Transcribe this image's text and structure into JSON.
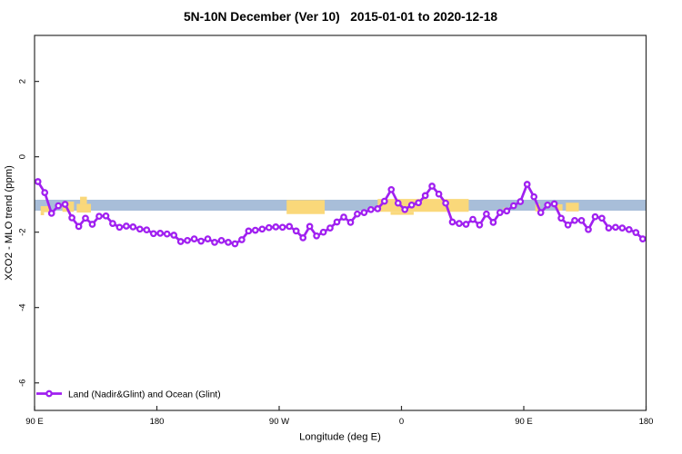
{
  "title": "5N-10N December (Ver 10)   2015-01-01 to 2020-12-18",
  "legend": {
    "label": "Land (Nadir&Glint) and Ocean (Glint)",
    "marker": "open-circle",
    "color": "#A020F0"
  },
  "colors": {
    "series_purple": "#A020F0",
    "marker_fill": "#ffffff",
    "ocean_band_blue": "#A8BED9",
    "land_patch_yellow": "#FAD87A",
    "axis_line": "#2e2e2e"
  },
  "chart_data": {
    "type": "line",
    "title": "5N-10N December (Ver 10)   2015-01-01 to 2020-12-18",
    "xlabel": "Longitude (deg E)",
    "ylabel": "XCO2 - MLO trend (ppm)",
    "xlim": [
      90,
      540
    ],
    "ylim": [
      -6.73,
      3.22
    ],
    "grid": false,
    "legend_position": "bottom-left",
    "x_ticks": [
      {
        "value": 90,
        "label": "90 E"
      },
      {
        "value": 180,
        "label": "180"
      },
      {
        "value": 270,
        "label": "90 W"
      },
      {
        "value": 360,
        "label": "0"
      },
      {
        "value": 450,
        "label": "90 E"
      },
      {
        "value": 540,
        "label": "180"
      }
    ],
    "y_ticks": [
      {
        "value": 2,
        "label": "2"
      },
      {
        "value": 0,
        "label": "0"
      },
      {
        "value": -2,
        "label": "-2"
      },
      {
        "value": -4,
        "label": "-4"
      },
      {
        "value": -6,
        "label": "-6"
      }
    ],
    "series": [
      {
        "name": "Land (Nadir&Glint) and Ocean (Glint)",
        "color": "#A020F0",
        "marker": "open-circle",
        "x_start": 92.5,
        "x_step": 5,
        "values": [
          -0.66,
          -0.95,
          -1.5,
          -1.3,
          -1.26,
          -1.62,
          -1.85,
          -1.63,
          -1.79,
          -1.58,
          -1.57,
          -1.77,
          -1.87,
          -1.84,
          -1.86,
          -1.92,
          -1.94,
          -2.04,
          -2.03,
          -2.05,
          -2.08,
          -2.25,
          -2.22,
          -2.18,
          -2.24,
          -2.18,
          -2.27,
          -2.22,
          -2.27,
          -2.31,
          -2.2,
          -1.97,
          -1.95,
          -1.92,
          -1.88,
          -1.86,
          -1.87,
          -1.85,
          -1.97,
          -2.15,
          -1.85,
          -2.1,
          -2.0,
          -1.89,
          -1.73,
          -1.6,
          -1.74,
          -1.52,
          -1.48,
          -1.4,
          -1.38,
          -1.18,
          -0.87,
          -1.23,
          -1.4,
          -1.28,
          -1.22,
          -1.03,
          -0.78,
          -0.99,
          -1.23,
          -1.73,
          -1.77,
          -1.79,
          -1.66,
          -1.81,
          -1.52,
          -1.74,
          -1.48,
          -1.44,
          -1.3,
          -1.19,
          -0.73,
          -1.06,
          -1.48,
          -1.28,
          -1.25,
          -1.63,
          -1.81,
          -1.69,
          -1.69,
          -1.93,
          -1.59,
          -1.63,
          -1.89,
          -1.87,
          -1.89,
          -1.93,
          -2.01,
          -2.18
        ]
      }
    ],
    "ocean_band": {
      "color": "#A8BED9",
      "x_from": 90,
      "x_to": 540,
      "y_from": -1.14,
      "y_to": -1.43
    },
    "land_patches": {
      "color": "#FAD87A",
      "rects": [
        [
          94.5,
          101.5,
          -1.31,
          -1.47
        ],
        [
          94.5,
          97.0,
          -1.47,
          -1.55
        ],
        [
          110.5,
          119.0,
          -1.19,
          -1.46
        ],
        [
          121.0,
          131.5,
          -1.25,
          -1.48
        ],
        [
          123.5,
          128.5,
          -1.06,
          -1.25
        ],
        [
          275.5,
          303.5,
          -1.15,
          -1.52
        ],
        [
          342.5,
          409.5,
          -1.12,
          -1.46
        ],
        [
          352.0,
          369.0,
          -1.46,
          -1.54
        ],
        [
          435.0,
          438.0,
          -1.35,
          -1.48
        ],
        [
          458.5,
          462.0,
          -1.25,
          -1.45
        ],
        [
          474.0,
          478.5,
          -1.26,
          -1.43
        ],
        [
          481.0,
          490.5,
          -1.22,
          -1.45
        ]
      ]
    }
  }
}
